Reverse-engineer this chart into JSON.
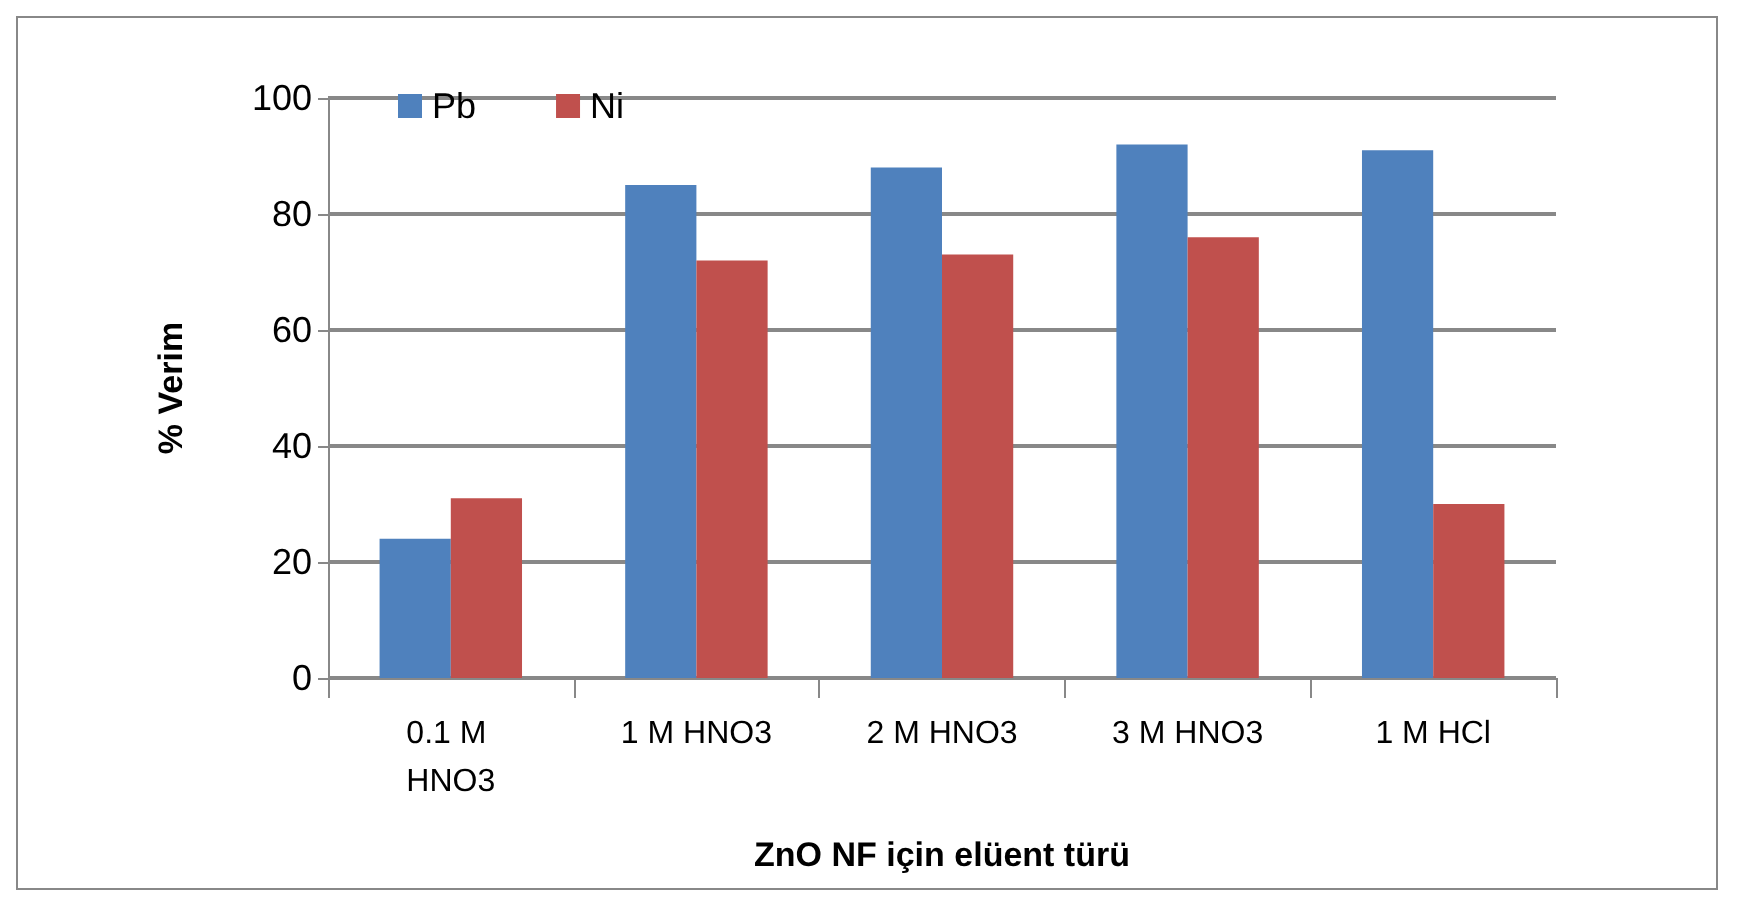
{
  "chart_data": {
    "type": "bar",
    "xlabel": "ZnO NF için elüent türü",
    "ylabel": "% Verim",
    "categories": [
      "0.1 M HNO3",
      "1 M HNO3",
      "2 M HNO3",
      "3 M HNO3",
      "1 M HCl"
    ],
    "series": [
      {
        "name": "Pb",
        "color": "#4f81bd",
        "values": [
          24,
          85,
          88,
          92,
          91
        ]
      },
      {
        "name": "Ni",
        "color": "#c0504d",
        "values": [
          31,
          72,
          73,
          76,
          30
        ]
      }
    ],
    "ylim": [
      0,
      100
    ],
    "yticks": [
      0,
      20,
      40,
      60,
      80,
      100
    ],
    "grid": "y",
    "legend": "top left"
  }
}
